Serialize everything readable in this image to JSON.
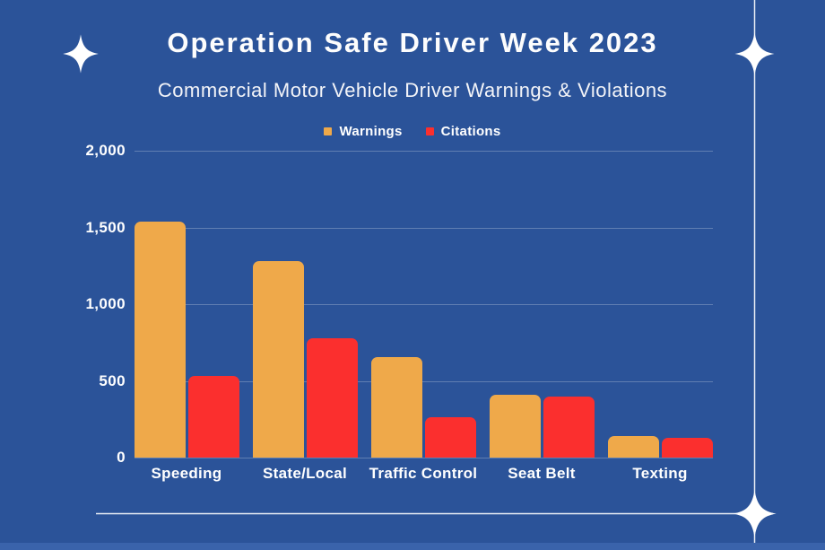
{
  "header": {
    "title": "Operation Safe Driver Week 2023",
    "subtitle": "Commercial Motor Vehicle Driver Warnings & Violations"
  },
  "colors": {
    "background": "#2b5399",
    "warnings_bar": "#efa94a",
    "citations_bar": "#fb2f2e",
    "text": "#ffffff",
    "gridline": "rgba(255,255,255,0.25)",
    "decor_line": "rgba(255,255,255,0.9)"
  },
  "chart_data": {
    "type": "bar",
    "title": "Operation Safe Driver Week 2023",
    "subtitle": "Commercial Motor Vehicle Driver Warnings & Violations",
    "categories": [
      "Speeding",
      "State/Local",
      "Traffic Control",
      "Seat Belt",
      "Texting"
    ],
    "series": [
      {
        "name": "Warnings",
        "color": "#efa94a",
        "values": [
          1540,
          1280,
          655,
          410,
          140
        ]
      },
      {
        "name": "Citations",
        "color": "#fb2f2e",
        "values": [
          535,
          780,
          265,
          400,
          130
        ]
      }
    ],
    "ylim": [
      0,
      2000
    ],
    "yticks": [
      {
        "value": 0,
        "label": "0"
      },
      {
        "value": 500,
        "label": "500"
      },
      {
        "value": 1000,
        "label": "1,000"
      },
      {
        "value": 1500,
        "label": "1,500"
      },
      {
        "value": 2000,
        "label": "2,000"
      }
    ],
    "grid": true,
    "legend_position": "top-center"
  }
}
